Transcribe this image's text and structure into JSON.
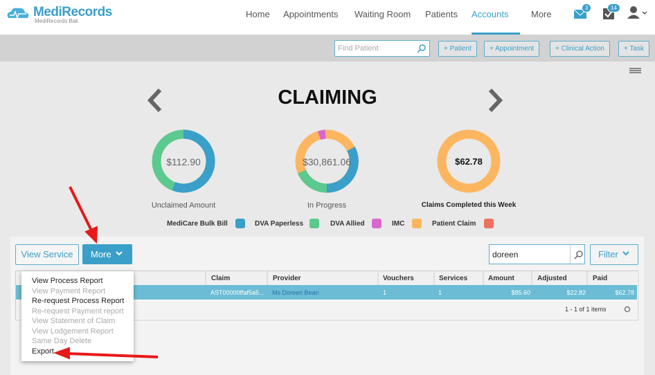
{
  "brand": {
    "name": "MediRecords",
    "subtitle": "MediRecords Bali"
  },
  "nav": {
    "items": [
      "Home",
      "Appointments",
      "Waiting Room",
      "Patients",
      "Accounts",
      "More"
    ],
    "active": "Accounts",
    "badges": [
      "3",
      "14"
    ]
  },
  "toolbar": {
    "search_placeholder": "Find Patient",
    "buttons": [
      "+ Patient",
      "+ Appointment",
      "+ Clinical Action",
      "+ Task"
    ]
  },
  "title": "CLAIMING",
  "cards": [
    {
      "value": "$112.90",
      "label": "Unclaimed Amount"
    },
    {
      "value": "$30,861.06",
      "label": "In Progress"
    },
    {
      "value": "$62.78",
      "label": "Claims Completed this Week"
    }
  ],
  "legend": [
    {
      "name": "MediCare Bulk Bill",
      "color": "#3a9fc9"
    },
    {
      "name": "DVA Paperless",
      "color": "#5cc98e"
    },
    {
      "name": "DVA Allied",
      "color": "#d866d0"
    },
    {
      "name": "IMC",
      "color": "#fdb660"
    },
    {
      "name": "Patient Claim",
      "color": "#f07060"
    }
  ],
  "grid": {
    "view_button": "View Service",
    "more_button": "More",
    "search_value": "doreen",
    "filter_button": "Filter",
    "columns": [
      "Claim",
      "Provider",
      "Vouchers",
      "Services",
      "Amount",
      "Adjusted",
      "Paid"
    ],
    "rows": [
      [
        "AST00000ffaf5a5...",
        "Ms Doreen Bean",
        "1",
        "1",
        "$85.60",
        "$22.82",
        "$62.78"
      ]
    ],
    "pager": "1 - 1 of 1 items"
  },
  "menu": {
    "items": [
      {
        "label": "View Process Report",
        "enabled": true
      },
      {
        "label": "View Payment Report",
        "enabled": false
      },
      {
        "label": "Re-request Process Report",
        "enabled": true
      },
      {
        "label": "Re-request Payment report",
        "enabled": false
      },
      {
        "label": "View Statement of Claim",
        "enabled": false
      },
      {
        "label": "View Lodgement Report",
        "enabled": false
      },
      {
        "label": "Same Day Delete",
        "enabled": false
      },
      {
        "label": "Export",
        "enabled": true
      }
    ]
  }
}
